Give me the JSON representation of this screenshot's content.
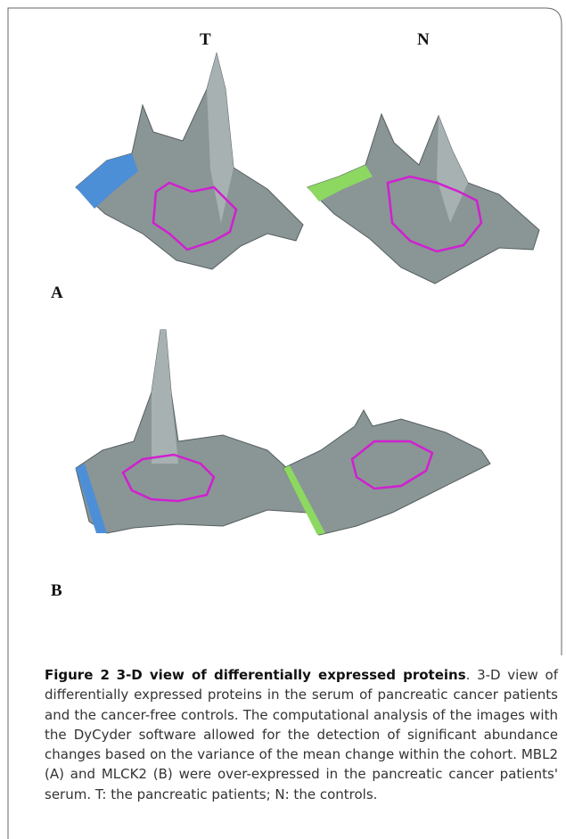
{
  "figure": {
    "panel_columns": [
      "T",
      "N"
    ],
    "panel_rows": [
      "A",
      "B"
    ],
    "caption": {
      "label": "Figure 2",
      "title": "3-D view of differentially expressed proteins",
      "body": ". 3-D view of differentially expressed proteins in the serum of pancreatic cancer patients and the cancer-free controls. The computational analysis of the images with the DyCyder software allowed for the detection of significant abundance changes based on the variance of the mean change within the cohort. MBL2 (A) and MLCK2 (B) were over-expressed in the pancreatic cancer patients' serum. T: the pancreatic patients; N: the controls."
    }
  }
}
